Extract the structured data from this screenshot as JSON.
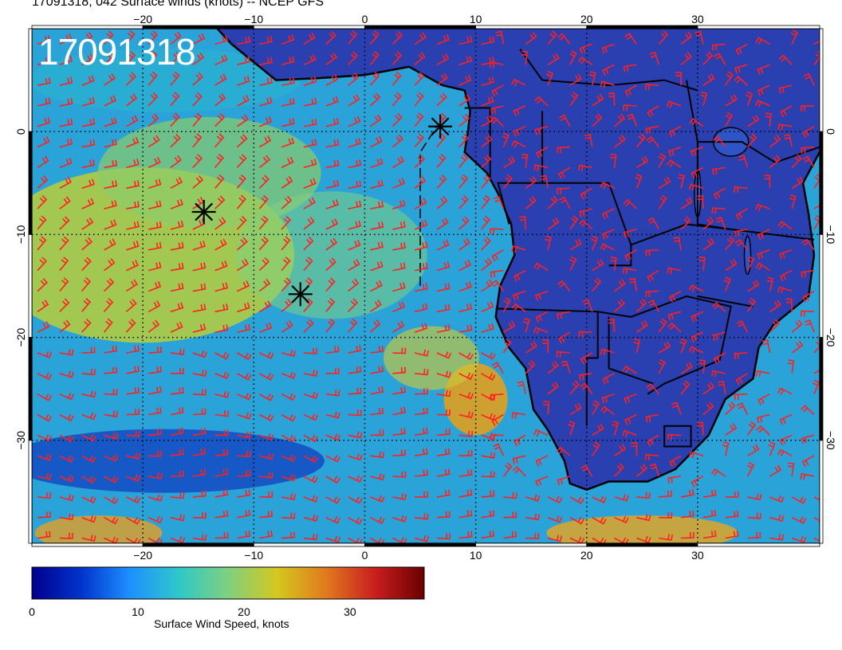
{
  "title": "17091318, 042 Surface winds (knots) -- NCEP GFS",
  "stamp": "17091318",
  "axes": {
    "lon_ticks": [
      "−20",
      "−10",
      "0",
      "10",
      "20",
      "30"
    ],
    "lat_ticks": [
      "0",
      "−10",
      "−20",
      "−30"
    ],
    "lon_range": [
      -30,
      41
    ],
    "lat_range": [
      -40,
      10
    ]
  },
  "colorbar": {
    "label": "Surface Wind Speed, knots",
    "ticks": [
      "0",
      "10",
      "20",
      "30"
    ],
    "range": [
      0,
      37
    ],
    "colors": [
      "#00008b",
      "#0033cc",
      "#1e90ff",
      "#2ec8c8",
      "#7fd07f",
      "#d4c81e",
      "#e07a1e",
      "#c81e1e",
      "#6b0000"
    ]
  },
  "markers": [
    {
      "name": "marker-1",
      "lon": -14.5,
      "lat": -7.8
    },
    {
      "name": "marker-2",
      "lon": -5.8,
      "lat": -15.8
    },
    {
      "name": "marker-3",
      "lon": 6.8,
      "lat": 0.5
    }
  ],
  "barb_color": "#ff2020"
}
